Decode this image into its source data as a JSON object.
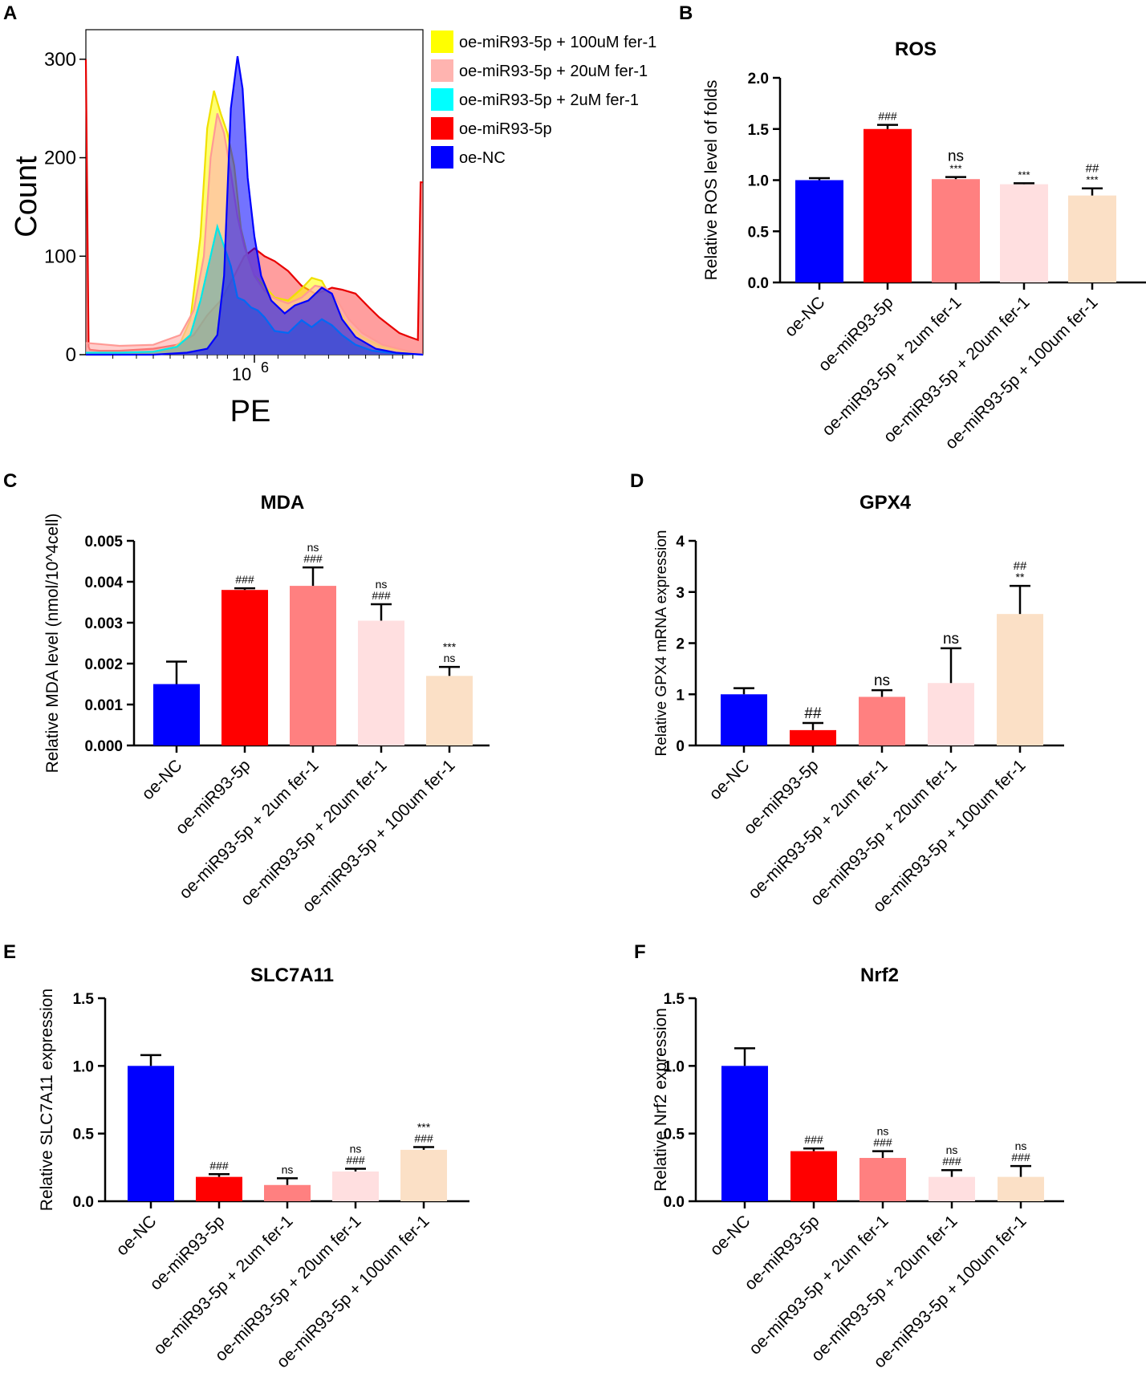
{
  "colors": {
    "oe_nc": "#0000ff",
    "oe_mir": "#ff0000",
    "fer2": "#ff8080",
    "fer20": "#ffdfe0",
    "fer100": "#fbe0c6",
    "flow_yellow": "#ffff00",
    "flow_pink": "#ffb4b0",
    "flow_cyan": "#00ffff",
    "flow_red": "#ff0000",
    "flow_blue": "#0000ff"
  },
  "chart_data": [
    {
      "id": "A",
      "panel_label": "A",
      "type": "area",
      "title": "",
      "xlabel": "PE",
      "ylabel": "Count",
      "xtick_base": "10",
      "xtick_exp": "6",
      "yticks": [
        "0",
        "100",
        "200",
        "300"
      ],
      "ylim": [
        0,
        330
      ],
      "xlim": [
        0,
        1
      ],
      "legend_position": "top-right",
      "legend": [
        {
          "label": "oe-miR93-5p + 100uM fer-1",
          "color": "#ffff00"
        },
        {
          "label": "oe-miR93-5p + 20uM fer-1",
          "color": "#ffb4b0"
        },
        {
          "label": "oe-miR93-5p + 2uM fer-1",
          "color": "#00ffff"
        },
        {
          "label": "oe-miR93-5p",
          "color": "#ff0000"
        },
        {
          "label": "oe-NC",
          "color": "#0000ff"
        }
      ],
      "series": [
        {
          "name": "oe-miR93-5p",
          "color": "#ff0000",
          "fill": "rgba(255,0,0,0.38)",
          "stroke": "#e80000",
          "x": [
            0,
            0.008,
            0.012,
            0.04,
            0.1,
            0.2,
            0.27,
            0.32,
            0.36,
            0.4,
            0.44,
            0.47,
            0.5,
            0.53,
            0.56,
            0.6,
            0.64,
            0.68,
            0.71,
            0.73,
            0.76,
            0.8,
            0.84,
            0.87,
            0.9,
            0.93,
            0.96,
            0.985,
            0.993,
            1.0
          ],
          "y": [
            300,
            8,
            5,
            4,
            4,
            6,
            10,
            20,
            40,
            55,
            80,
            100,
            108,
            100,
            95,
            85,
            70,
            62,
            65,
            68,
            66,
            62,
            48,
            38,
            30,
            22,
            18,
            15,
            175,
            175
          ]
        },
        {
          "name": "oe-miR93-5p + 100uM fer-1",
          "color": "#ffff00",
          "fill": "rgba(255,255,0,0.55)",
          "stroke": "#f0e000",
          "x": [
            0,
            0.1,
            0.2,
            0.25,
            0.28,
            0.31,
            0.34,
            0.36,
            0.38,
            0.4,
            0.42,
            0.44,
            0.46,
            0.48,
            0.5,
            0.53,
            0.56,
            0.6,
            0.64,
            0.67,
            0.7,
            0.74,
            0.78,
            0.82,
            0.88,
            0.94,
            1.0
          ],
          "y": [
            0,
            0,
            2,
            5,
            12,
            35,
            120,
            230,
            268,
            245,
            225,
            192,
            128,
            100,
            80,
            70,
            58,
            55,
            67,
            78,
            75,
            50,
            30,
            18,
            8,
            4,
            0
          ]
        },
        {
          "name": "oe-miR93-5p + 20uM fer-1",
          "color": "#ffb4b0",
          "fill": "rgba(255,180,176,0.65)",
          "stroke": "#ff9a95",
          "x": [
            0,
            0.1,
            0.2,
            0.28,
            0.32,
            0.35,
            0.37,
            0.39,
            0.41,
            0.43,
            0.45,
            0.47,
            0.5,
            0.53,
            0.56,
            0.6,
            0.64,
            0.68,
            0.71,
            0.74,
            0.78,
            0.82,
            0.88,
            0.94,
            1.0
          ],
          "y": [
            12,
            9,
            10,
            20,
            45,
            100,
            200,
            245,
            225,
            185,
            140,
            110,
            80,
            65,
            57,
            52,
            58,
            70,
            68,
            58,
            36,
            22,
            10,
            5,
            0
          ]
        },
        {
          "name": "oe-miR93-5p + 2uM fer-1",
          "color": "#00ffff",
          "fill": "rgba(90,168,170,0.58)",
          "stroke": "#00e8e8",
          "x": [
            0,
            0.1,
            0.2,
            0.27,
            0.31,
            0.34,
            0.37,
            0.39,
            0.41,
            0.43,
            0.45,
            0.47,
            0.49,
            0.51,
            0.53,
            0.56,
            0.6,
            0.64,
            0.67,
            0.7,
            0.73,
            0.76,
            0.8,
            0.85,
            0.9,
            0.95,
            1.0
          ],
          "y": [
            2,
            2,
            3,
            8,
            20,
            55,
            100,
            130,
            110,
            90,
            58,
            55,
            48,
            45,
            38,
            24,
            22,
            35,
            28,
            36,
            30,
            20,
            10,
            4,
            2,
            1,
            0
          ]
        },
        {
          "name": "oe-NC",
          "color": "#0000ff",
          "fill": "rgba(0,0,255,0.55)",
          "stroke": "#0000ff",
          "x": [
            0,
            0.2,
            0.3,
            0.36,
            0.39,
            0.41,
            0.43,
            0.45,
            0.465,
            0.48,
            0.5,
            0.52,
            0.55,
            0.59,
            0.62,
            0.66,
            0.7,
            0.73,
            0.76,
            0.8,
            0.86,
            0.92,
            1.0
          ],
          "y": [
            0,
            0,
            2,
            6,
            20,
            80,
            250,
            303,
            270,
            180,
            120,
            80,
            55,
            42,
            50,
            55,
            68,
            62,
            36,
            18,
            6,
            2,
            0
          ]
        }
      ]
    },
    {
      "id": "B",
      "panel_label": "B",
      "type": "bar",
      "title": "ROS",
      "ylabel": "Relative ROS level of folds",
      "categories": [
        "oe-NC",
        "oe-miR93-5p",
        "oe-miR93-5p + 2um fer-1",
        "oe-miR93-5p + 20um fer-1",
        "oe-miR93-5p + 100um fer-1"
      ],
      "values": [
        1.0,
        1.5,
        1.01,
        0.96,
        0.85
      ],
      "errors": [
        0.02,
        0.04,
        0.02,
        0.01,
        0.07
      ],
      "ylim": [
        0,
        2.0
      ],
      "yticks": [
        "0.0",
        "0.5",
        "1.0",
        "1.5",
        "2.0"
      ],
      "annotations": [
        [],
        [
          "###"
        ],
        [
          "***",
          "ns"
        ],
        [
          "***"
        ],
        [
          "***",
          "##"
        ]
      ],
      "annotation_sizes": [
        [],
        [
          14
        ],
        [
          13,
          19
        ],
        [
          13
        ],
        [
          13,
          15
        ]
      ]
    },
    {
      "id": "C",
      "panel_label": "C",
      "type": "bar",
      "title": "MDA",
      "ylabel": "Relative MDA level (nmol/10^4cell)",
      "categories": [
        "oe-NC",
        "oe-miR93-5p",
        "oe-miR93-5p + 2um fer-1",
        "oe-miR93-5p + 20um fer-1",
        "oe-miR93-5p + 100um fer-1"
      ],
      "values": [
        0.0015,
        0.0038,
        0.0039,
        0.00305,
        0.0017
      ],
      "errors": [
        0.00055,
        4e-05,
        0.00045,
        0.0004,
        0.00022
      ],
      "ylim": [
        0,
        0.005
      ],
      "yticks": [
        "0.000",
        "0.001",
        "0.002",
        "0.003",
        "0.004",
        "0.005"
      ],
      "annotations": [
        [],
        [
          "###"
        ],
        [
          "###",
          "ns"
        ],
        [
          "###",
          "ns"
        ],
        [
          "ns",
          "***"
        ]
      ],
      "annotation_sizes": [
        [],
        [
          14
        ],
        [
          14,
          14
        ],
        [
          14,
          14
        ],
        [
          14,
          14
        ]
      ]
    },
    {
      "id": "D",
      "panel_label": "D",
      "type": "bar",
      "title": "GPX4",
      "ylabel": "Relative GPX4 mRNA expression",
      "categories": [
        "oe-NC",
        "oe-miR93-5p",
        "oe-miR93-5p + 2um fer-1",
        "oe-miR93-5p + 20um fer-1",
        "oe-miR93-5p + 100um fer-1"
      ],
      "values": [
        1.0,
        0.3,
        0.95,
        1.22,
        2.57
      ],
      "errors": [
        0.12,
        0.14,
        0.13,
        0.68,
        0.55
      ],
      "ylim": [
        0,
        4
      ],
      "yticks": [
        "0",
        "1",
        "2",
        "3",
        "4"
      ],
      "annotations": [
        [],
        [
          "##"
        ],
        [
          "ns"
        ],
        [
          "ns"
        ],
        [
          "**",
          "##"
        ]
      ],
      "annotation_sizes": [
        [],
        [
          19
        ],
        [
          19
        ],
        [
          19
        ],
        [
          14,
          15
        ]
      ]
    },
    {
      "id": "E",
      "panel_label": "E",
      "type": "bar",
      "title": "SLC7A11",
      "ylabel": "Relative SLC7A11 expression",
      "categories": [
        "oe-NC",
        "oe-miR93-5p",
        "oe-miR93-5p + 2um fer-1",
        "oe-miR93-5p + 20um fer-1",
        "oe-miR93-5p + 100um fer-1"
      ],
      "values": [
        1.0,
        0.18,
        0.12,
        0.22,
        0.38
      ],
      "errors": [
        0.08,
        0.02,
        0.05,
        0.02,
        0.02
      ],
      "ylim": [
        0,
        1.5
      ],
      "yticks": [
        "0.0",
        "0.5",
        "1.0",
        "1.5"
      ],
      "annotations": [
        [],
        [
          "###"
        ],
        [
          "ns"
        ],
        [
          "###",
          "ns"
        ],
        [
          "###",
          "***"
        ]
      ],
      "annotation_sizes": [
        [],
        [
          14
        ],
        [
          14
        ],
        [
          14,
          14
        ],
        [
          14,
          14
        ]
      ]
    },
    {
      "id": "F",
      "panel_label": "F",
      "type": "bar",
      "title": "Nrf2",
      "ylabel": "Relative Nrf2 expression",
      "categories": [
        "oe-NC",
        "oe-miR93-5p",
        "oe-miR93-5p + 2um fer-1",
        "oe-miR93-5p + 20um fer-1",
        "oe-miR93-5p + 100um fer-1"
      ],
      "values": [
        1.0,
        0.37,
        0.32,
        0.18,
        0.18
      ],
      "errors": [
        0.13,
        0.02,
        0.05,
        0.05,
        0.08
      ],
      "ylim": [
        0,
        1.5
      ],
      "yticks": [
        "0.0",
        "0.5",
        "1.0",
        "1.5"
      ],
      "annotations": [
        [],
        [
          "###"
        ],
        [
          "###",
          "ns"
        ],
        [
          "###",
          "ns"
        ],
        [
          "###",
          "ns"
        ]
      ],
      "annotation_sizes": [
        [],
        [
          14
        ],
        [
          14,
          14
        ],
        [
          14,
          14
        ],
        [
          14,
          14
        ]
      ]
    }
  ]
}
